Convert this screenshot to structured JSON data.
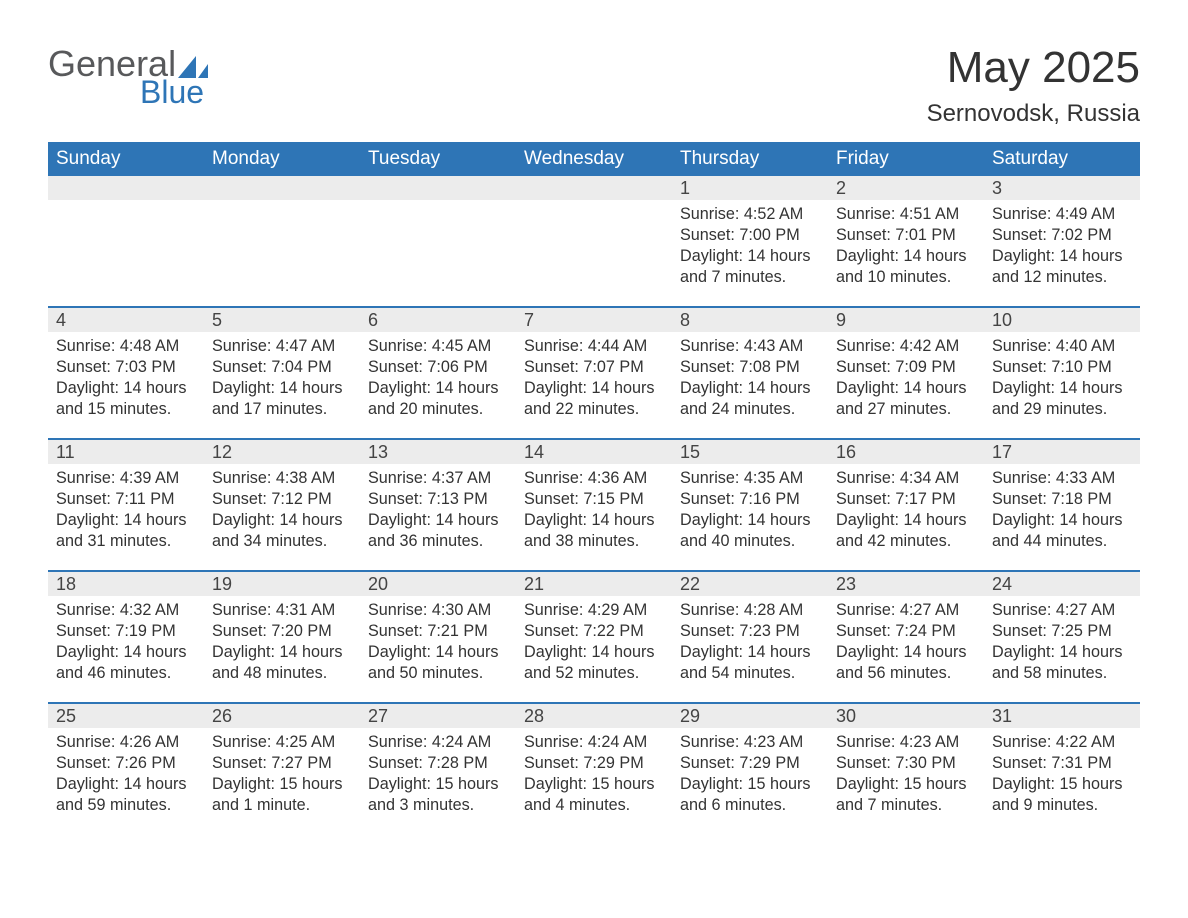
{
  "brand": {
    "word1": "General",
    "word2": "Blue",
    "shape_color": "#2e75b6",
    "word1_color": "#58595b",
    "word2_color": "#2e75b6"
  },
  "header": {
    "month_title": "May 2025",
    "location": "Sernovodsk, Russia"
  },
  "colors": {
    "header_bg": "#2e75b6",
    "header_text": "#ffffff",
    "dayband_bg": "#ececec",
    "text": "#333333",
    "page_bg": "#ffffff"
  },
  "days_of_week": [
    "Sunday",
    "Monday",
    "Tuesday",
    "Wednesday",
    "Thursday",
    "Friday",
    "Saturday"
  ],
  "weeks": [
    [
      {
        "n": "",
        "empty": true
      },
      {
        "n": "",
        "empty": true
      },
      {
        "n": "",
        "empty": true
      },
      {
        "n": "",
        "empty": true
      },
      {
        "n": "1",
        "sunrise": "Sunrise: 4:52 AM",
        "sunset": "Sunset: 7:00 PM",
        "dl1": "Daylight: 14 hours",
        "dl2": "and 7 minutes."
      },
      {
        "n": "2",
        "sunrise": "Sunrise: 4:51 AM",
        "sunset": "Sunset: 7:01 PM",
        "dl1": "Daylight: 14 hours",
        "dl2": "and 10 minutes."
      },
      {
        "n": "3",
        "sunrise": "Sunrise: 4:49 AM",
        "sunset": "Sunset: 7:02 PM",
        "dl1": "Daylight: 14 hours",
        "dl2": "and 12 minutes."
      }
    ],
    [
      {
        "n": "4",
        "sunrise": "Sunrise: 4:48 AM",
        "sunset": "Sunset: 7:03 PM",
        "dl1": "Daylight: 14 hours",
        "dl2": "and 15 minutes."
      },
      {
        "n": "5",
        "sunrise": "Sunrise: 4:47 AM",
        "sunset": "Sunset: 7:04 PM",
        "dl1": "Daylight: 14 hours",
        "dl2": "and 17 minutes."
      },
      {
        "n": "6",
        "sunrise": "Sunrise: 4:45 AM",
        "sunset": "Sunset: 7:06 PM",
        "dl1": "Daylight: 14 hours",
        "dl2": "and 20 minutes."
      },
      {
        "n": "7",
        "sunrise": "Sunrise: 4:44 AM",
        "sunset": "Sunset: 7:07 PM",
        "dl1": "Daylight: 14 hours",
        "dl2": "and 22 minutes."
      },
      {
        "n": "8",
        "sunrise": "Sunrise: 4:43 AM",
        "sunset": "Sunset: 7:08 PM",
        "dl1": "Daylight: 14 hours",
        "dl2": "and 24 minutes."
      },
      {
        "n": "9",
        "sunrise": "Sunrise: 4:42 AM",
        "sunset": "Sunset: 7:09 PM",
        "dl1": "Daylight: 14 hours",
        "dl2": "and 27 minutes."
      },
      {
        "n": "10",
        "sunrise": "Sunrise: 4:40 AM",
        "sunset": "Sunset: 7:10 PM",
        "dl1": "Daylight: 14 hours",
        "dl2": "and 29 minutes."
      }
    ],
    [
      {
        "n": "11",
        "sunrise": "Sunrise: 4:39 AM",
        "sunset": "Sunset: 7:11 PM",
        "dl1": "Daylight: 14 hours",
        "dl2": "and 31 minutes."
      },
      {
        "n": "12",
        "sunrise": "Sunrise: 4:38 AM",
        "sunset": "Sunset: 7:12 PM",
        "dl1": "Daylight: 14 hours",
        "dl2": "and 34 minutes."
      },
      {
        "n": "13",
        "sunrise": "Sunrise: 4:37 AM",
        "sunset": "Sunset: 7:13 PM",
        "dl1": "Daylight: 14 hours",
        "dl2": "and 36 minutes."
      },
      {
        "n": "14",
        "sunrise": "Sunrise: 4:36 AM",
        "sunset": "Sunset: 7:15 PM",
        "dl1": "Daylight: 14 hours",
        "dl2": "and 38 minutes."
      },
      {
        "n": "15",
        "sunrise": "Sunrise: 4:35 AM",
        "sunset": "Sunset: 7:16 PM",
        "dl1": "Daylight: 14 hours",
        "dl2": "and 40 minutes."
      },
      {
        "n": "16",
        "sunrise": "Sunrise: 4:34 AM",
        "sunset": "Sunset: 7:17 PM",
        "dl1": "Daylight: 14 hours",
        "dl2": "and 42 minutes."
      },
      {
        "n": "17",
        "sunrise": "Sunrise: 4:33 AM",
        "sunset": "Sunset: 7:18 PM",
        "dl1": "Daylight: 14 hours",
        "dl2": "and 44 minutes."
      }
    ],
    [
      {
        "n": "18",
        "sunrise": "Sunrise: 4:32 AM",
        "sunset": "Sunset: 7:19 PM",
        "dl1": "Daylight: 14 hours",
        "dl2": "and 46 minutes."
      },
      {
        "n": "19",
        "sunrise": "Sunrise: 4:31 AM",
        "sunset": "Sunset: 7:20 PM",
        "dl1": "Daylight: 14 hours",
        "dl2": "and 48 minutes."
      },
      {
        "n": "20",
        "sunrise": "Sunrise: 4:30 AM",
        "sunset": "Sunset: 7:21 PM",
        "dl1": "Daylight: 14 hours",
        "dl2": "and 50 minutes."
      },
      {
        "n": "21",
        "sunrise": "Sunrise: 4:29 AM",
        "sunset": "Sunset: 7:22 PM",
        "dl1": "Daylight: 14 hours",
        "dl2": "and 52 minutes."
      },
      {
        "n": "22",
        "sunrise": "Sunrise: 4:28 AM",
        "sunset": "Sunset: 7:23 PM",
        "dl1": "Daylight: 14 hours",
        "dl2": "and 54 minutes."
      },
      {
        "n": "23",
        "sunrise": "Sunrise: 4:27 AM",
        "sunset": "Sunset: 7:24 PM",
        "dl1": "Daylight: 14 hours",
        "dl2": "and 56 minutes."
      },
      {
        "n": "24",
        "sunrise": "Sunrise: 4:27 AM",
        "sunset": "Sunset: 7:25 PM",
        "dl1": "Daylight: 14 hours",
        "dl2": "and 58 minutes."
      }
    ],
    [
      {
        "n": "25",
        "sunrise": "Sunrise: 4:26 AM",
        "sunset": "Sunset: 7:26 PM",
        "dl1": "Daylight: 14 hours",
        "dl2": "and 59 minutes."
      },
      {
        "n": "26",
        "sunrise": "Sunrise: 4:25 AM",
        "sunset": "Sunset: 7:27 PM",
        "dl1": "Daylight: 15 hours",
        "dl2": "and 1 minute."
      },
      {
        "n": "27",
        "sunrise": "Sunrise: 4:24 AM",
        "sunset": "Sunset: 7:28 PM",
        "dl1": "Daylight: 15 hours",
        "dl2": "and 3 minutes."
      },
      {
        "n": "28",
        "sunrise": "Sunrise: 4:24 AM",
        "sunset": "Sunset: 7:29 PM",
        "dl1": "Daylight: 15 hours",
        "dl2": "and 4 minutes."
      },
      {
        "n": "29",
        "sunrise": "Sunrise: 4:23 AM",
        "sunset": "Sunset: 7:29 PM",
        "dl1": "Daylight: 15 hours",
        "dl2": "and 6 minutes."
      },
      {
        "n": "30",
        "sunrise": "Sunrise: 4:23 AM",
        "sunset": "Sunset: 7:30 PM",
        "dl1": "Daylight: 15 hours",
        "dl2": "and 7 minutes."
      },
      {
        "n": "31",
        "sunrise": "Sunrise: 4:22 AM",
        "sunset": "Sunset: 7:31 PM",
        "dl1": "Daylight: 15 hours",
        "dl2": "and 9 minutes."
      }
    ]
  ]
}
